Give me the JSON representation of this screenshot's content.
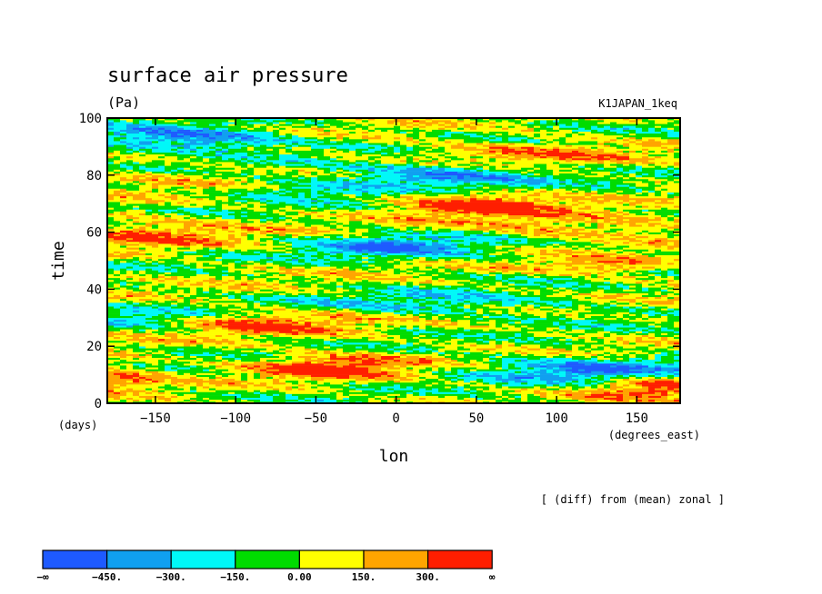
{
  "chart_data": {
    "type": "heatmap",
    "title": "surface air pressure",
    "units": "(Pa)",
    "experiment": "K1JAPAN_1keq",
    "xlabel": "lon",
    "ylabel": "time",
    "x_unit_label": "(degrees_east)",
    "y_unit_label": "(days)",
    "annotation": "[ (diff) from (mean) zonal ]",
    "xlim": [
      -180,
      177
    ],
    "ylim": [
      0,
      100
    ],
    "x_ticks": [
      -150,
      -100,
      -50,
      0,
      50,
      100,
      150
    ],
    "y_ticks": [
      0,
      20,
      40,
      60,
      80,
      100
    ],
    "x_tick_labels": [
      "−150",
      "−100",
      "−50",
      "0",
      "50",
      "100",
      "150"
    ],
    "y_tick_labels": [
      "0",
      "20",
      "40",
      "60",
      "80",
      "100"
    ],
    "colorbar": {
      "boundaries": [
        -450,
        -300,
        -150,
        0,
        150,
        300
      ],
      "labels": [
        "−∞",
        "−450.",
        "−300.",
        "−150.",
        "0.00",
        "150.",
        "300.",
        "∞"
      ],
      "colors": [
        "#1e5aff",
        "#10a0f0",
        "#00f8f8",
        "#00dc00",
        "#ffff00",
        "#ffa500",
        "#ff1e00"
      ]
    },
    "features": [
      {
        "lon": -130,
        "time": 93,
        "value": -500,
        "slon": 45,
        "stime": 3
      },
      {
        "lon": 25,
        "time": 80,
        "value": -450,
        "slon": 45,
        "stime": 3
      },
      {
        "lon": -60,
        "time": 75,
        "value": -250,
        "slon": 40,
        "stime": 2.5
      },
      {
        "lon": 50,
        "time": 70,
        "value": 450,
        "slon": 35,
        "stime": 3
      },
      {
        "lon": -150,
        "time": 60,
        "value": 250,
        "slon": 40,
        "stime": 4
      },
      {
        "lon": 0,
        "time": 55,
        "value": -400,
        "slon": 40,
        "stime": 3
      },
      {
        "lon": 120,
        "time": 62,
        "value": 250,
        "slon": 50,
        "stime": 3
      },
      {
        "lon": 130,
        "time": 48,
        "value": 300,
        "slon": 30,
        "stime": 2
      },
      {
        "lon": 30,
        "time": 35,
        "value": -250,
        "slon": 60,
        "stime": 3
      },
      {
        "lon": -160,
        "time": 30,
        "value": -200,
        "slon": 30,
        "stime": 3
      },
      {
        "lon": -80,
        "time": 28,
        "value": 300,
        "slon": 40,
        "stime": 3
      },
      {
        "lon": -40,
        "time": 13,
        "value": 400,
        "slon": 35,
        "stime": 3
      },
      {
        "lon": 120,
        "time": 12,
        "value": -450,
        "slon": 50,
        "stime": 3
      },
      {
        "lon": 160,
        "time": 6,
        "value": 350,
        "slon": 30,
        "stime": 3
      },
      {
        "lon": -175,
        "time": 10,
        "value": 250,
        "slon": 20,
        "stime": 4
      },
      {
        "lon": 80,
        "time": 88,
        "value": 250,
        "slon": 50,
        "stime": 3
      },
      {
        "lon": -140,
        "time": 78,
        "value": 150,
        "slon": 40,
        "stime": 3
      }
    ]
  }
}
